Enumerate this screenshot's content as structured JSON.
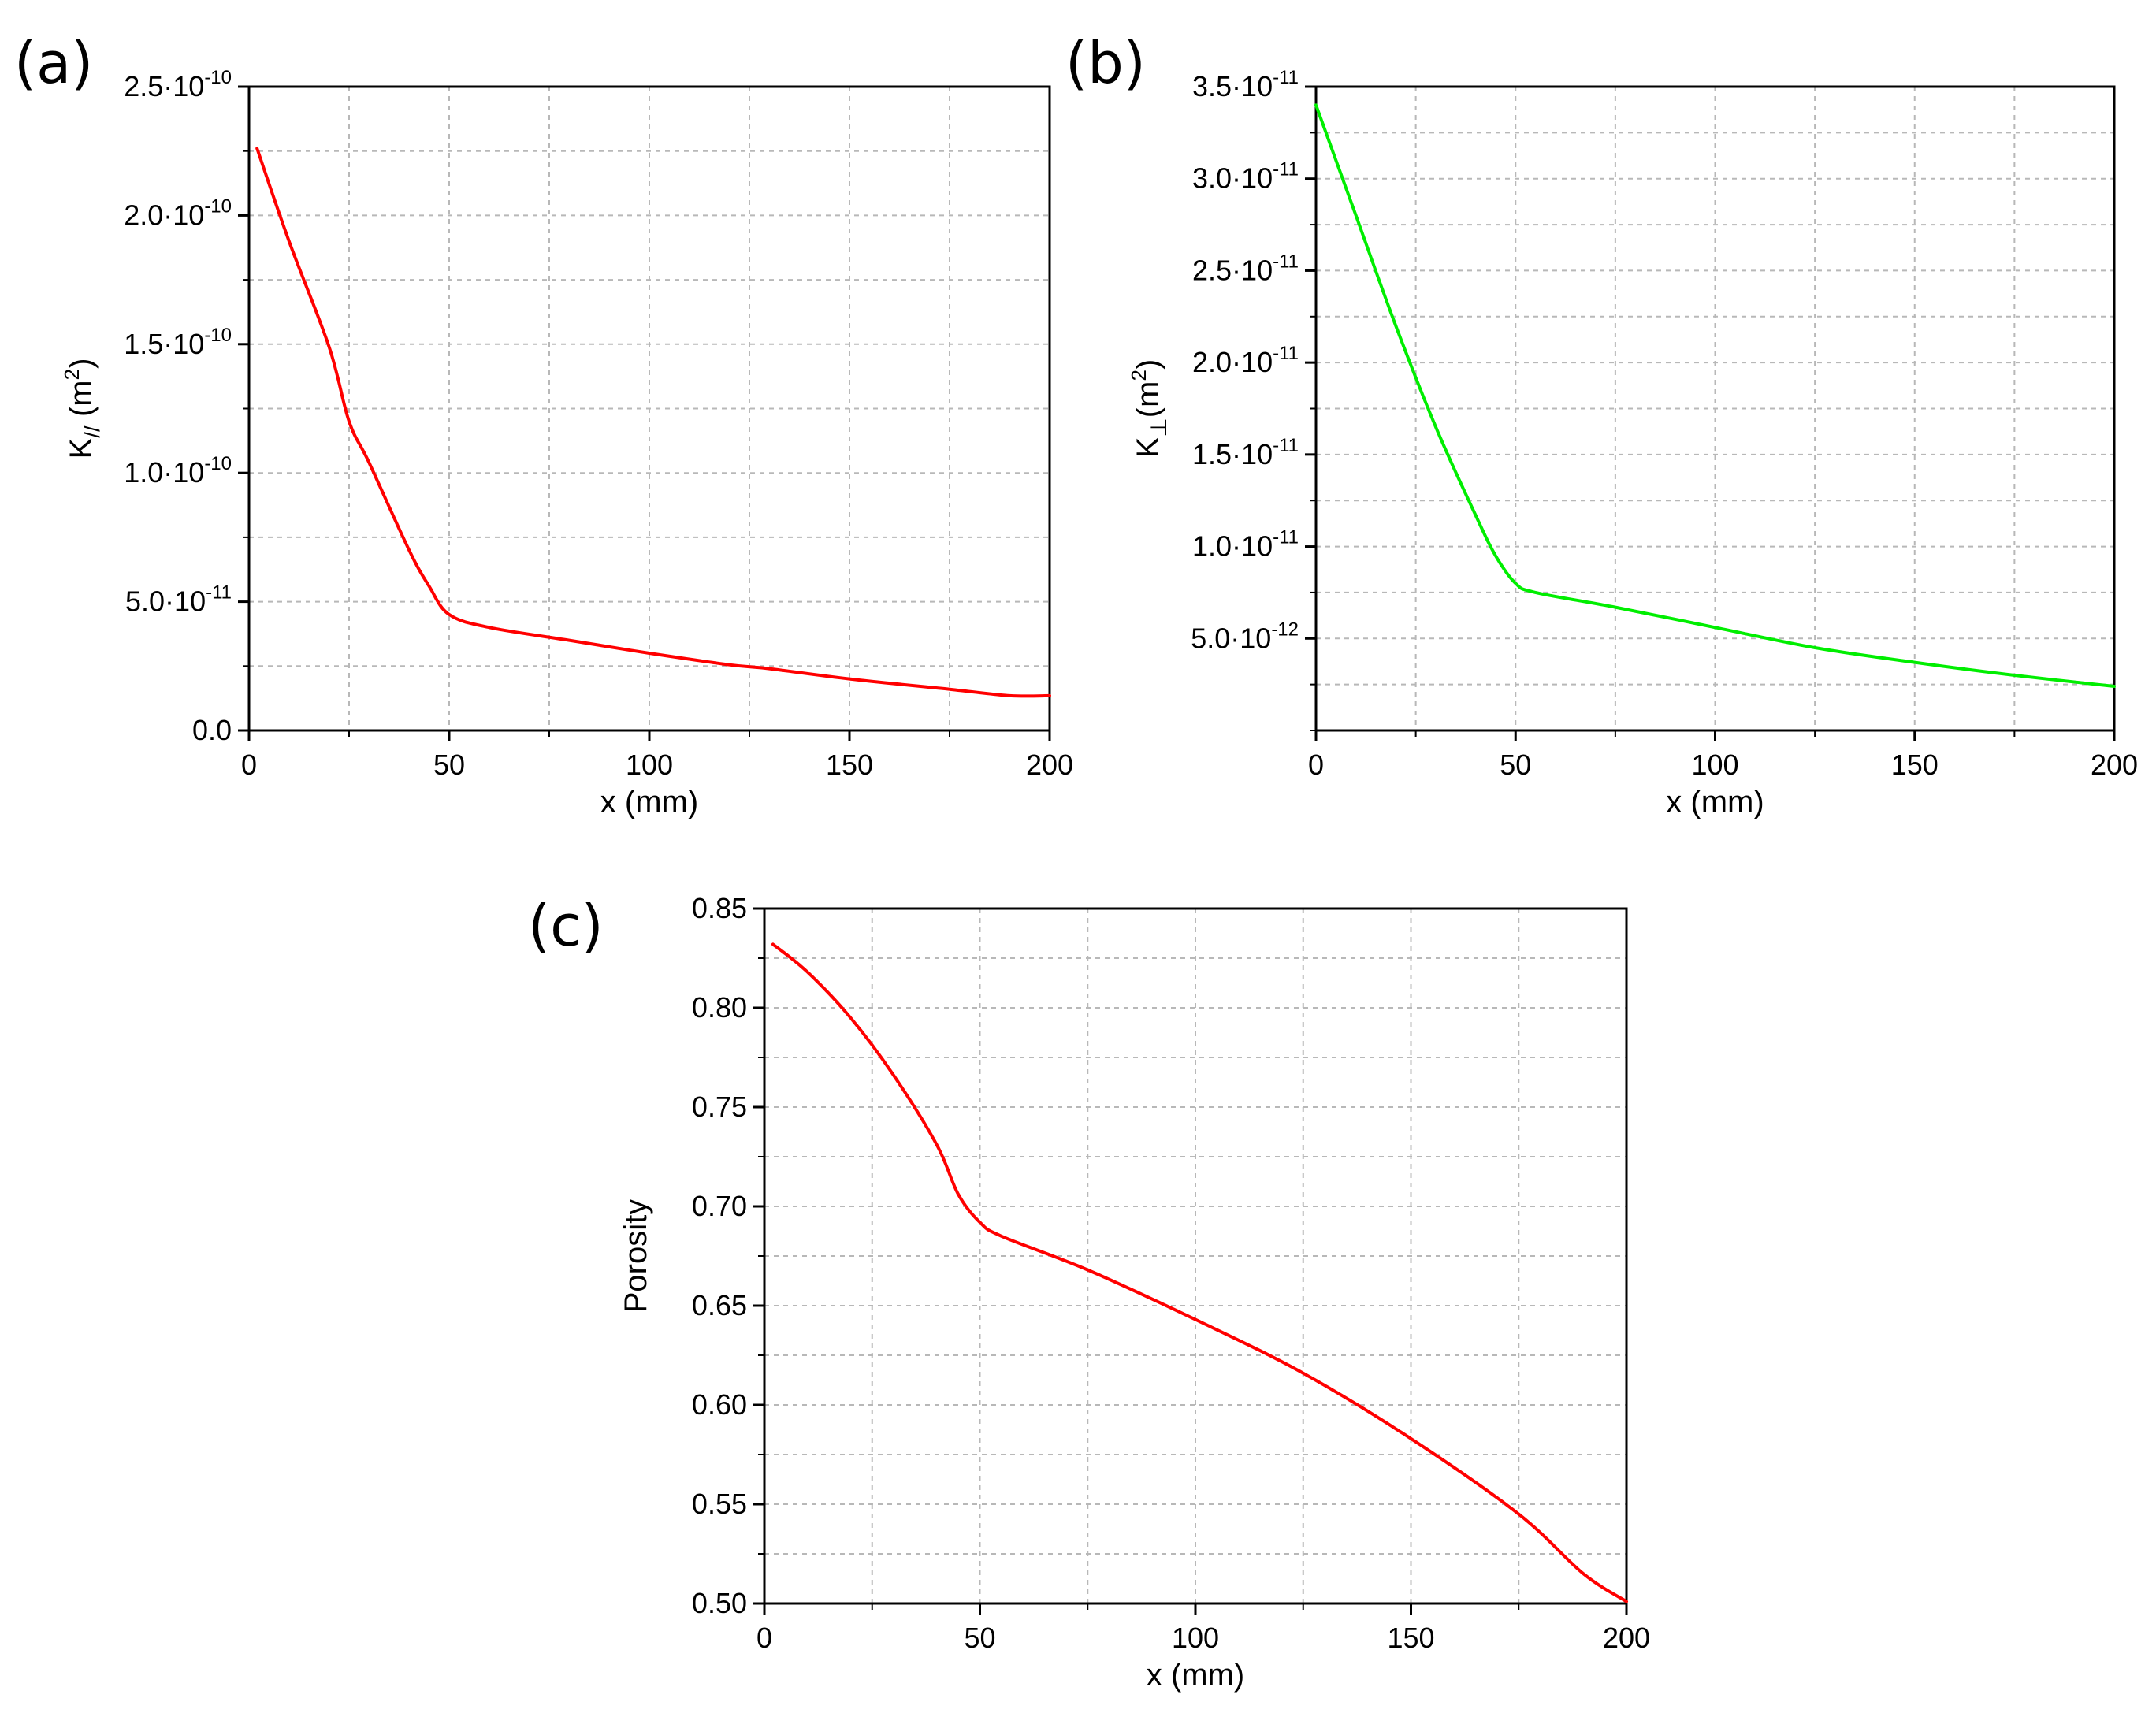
{
  "chart_data": [
    {
      "id": "a",
      "type": "line",
      "panel_label": "(a)",
      "color": "#ff0000",
      "xlabel": "x (mm)",
      "ylabel_main": "K",
      "ylabel_sub": "//",
      "ylabel_unit_open": " (m",
      "ylabel_unit_sup": "2",
      "ylabel_unit_close": ")",
      "xlim": [
        0,
        200
      ],
      "ylim": [
        0,
        2.5e-10
      ],
      "xticks": [
        0,
        50,
        100,
        150,
        200
      ],
      "xtick_labels": [
        "0",
        "50",
        "100",
        "150",
        "200"
      ],
      "yticks": [
        0,
        5e-11,
        1e-10,
        1.5e-10,
        2e-10,
        2.5e-10
      ],
      "ytick_labels": [
        {
          "mant": "0.0",
          "exp": ""
        },
        {
          "mant": "5.0·10",
          "exp": "-11"
        },
        {
          "mant": "1.0·10",
          "exp": "-10"
        },
        {
          "mant": "1.5·10",
          "exp": "-10"
        },
        {
          "mant": "2.0·10",
          "exp": "-10"
        },
        {
          "mant": "2.5·10",
          "exp": "-10"
        }
      ],
      "grid": true,
      "x": [
        2,
        10,
        20,
        25,
        30,
        40,
        45,
        50,
        60,
        80,
        100,
        120,
        130,
        150,
        175,
        190,
        200
      ],
      "y": [
        2.26e-10,
        1.9e-10,
        1.49e-10,
        1.2e-10,
        1.04e-10,
        7e-11,
        5.6e-11,
        4.5e-11,
        4e-11,
        3.5e-11,
        3e-11,
        2.55e-11,
        2.4e-11,
        2e-11,
        1.6e-11,
        1.35e-11,
        1.35e-11
      ]
    },
    {
      "id": "b",
      "type": "line",
      "panel_label": "(b)",
      "color": "#00ee00",
      "xlabel": "x (mm)",
      "ylabel_main": "K",
      "ylabel_sub": "⊥",
      "ylabel_unit_open": "(m",
      "ylabel_unit_sup": "2",
      "ylabel_unit_close": ")",
      "xlim": [
        0,
        200
      ],
      "ylim": [
        0,
        3.5e-11
      ],
      "xticks": [
        0,
        50,
        100,
        150,
        200
      ],
      "xtick_labels": [
        "0",
        "50",
        "100",
        "150",
        "200"
      ],
      "yticks": [
        5e-12,
        1e-11,
        1.5e-11,
        2e-11,
        2.5e-11,
        3e-11,
        3.5e-11
      ],
      "ytick_labels": [
        {
          "mant": "5.0·10",
          "exp": "-12"
        },
        {
          "mant": "1.0·10",
          "exp": "-11"
        },
        {
          "mant": "1.5·10",
          "exp": "-11"
        },
        {
          "mant": "2.0·10",
          "exp": "-11"
        },
        {
          "mant": "2.5·10",
          "exp": "-11"
        },
        {
          "mant": "3.0·10",
          "exp": "-11"
        },
        {
          "mant": "3.5·10",
          "exp": "-11"
        }
      ],
      "grid": true,
      "x": [
        0,
        10,
        20,
        30,
        40,
        45,
        50,
        55,
        75,
        100,
        125,
        150,
        175,
        200
      ],
      "y": [
        3.4e-11,
        2.8e-11,
        2.2e-11,
        1.65e-11,
        1.17e-11,
        9.5e-12,
        8e-12,
        7.5e-12,
        6.7e-12,
        5.6e-12,
        4.5e-12,
        3.7e-12,
        3e-12,
        2.4e-12
      ]
    },
    {
      "id": "c",
      "type": "line",
      "panel_label": "(c)",
      "color": "#ff0000",
      "xlabel": "x (mm)",
      "ylabel": "Porosity",
      "xlim": [
        0,
        200
      ],
      "ylim": [
        0.5,
        0.85
      ],
      "xticks": [
        0,
        50,
        100,
        150,
        200
      ],
      "xtick_labels": [
        "0",
        "50",
        "100",
        "150",
        "200"
      ],
      "yticks": [
        0.5,
        0.55,
        0.6,
        0.65,
        0.7,
        0.75,
        0.8,
        0.85
      ],
      "ytick_labels": [
        "0.50",
        "0.55",
        "0.60",
        "0.65",
        "0.70",
        "0.75",
        "0.80",
        "0.85"
      ],
      "grid": true,
      "x": [
        2,
        10,
        20,
        30,
        40,
        45,
        50,
        55,
        75,
        100,
        125,
        150,
        175,
        190,
        200
      ],
      "y": [
        0.832,
        0.818,
        0.795,
        0.766,
        0.731,
        0.706,
        0.692,
        0.685,
        0.668,
        0.643,
        0.616,
        0.583,
        0.545,
        0.515,
        0.501
      ]
    }
  ]
}
